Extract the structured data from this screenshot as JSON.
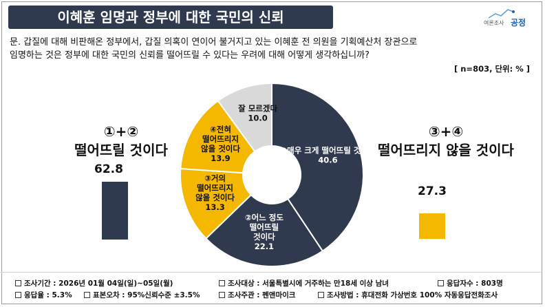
{
  "header": {
    "title": "이혜훈 임명과 정부에 대한 국민의 신뢰",
    "logo_sub": "여론조사",
    "logo_main": "공정"
  },
  "question": {
    "text": "문. 갑질에 대해 비판해온 정부에서, 갑질 의혹이 연이어 불거지고 있는 이혜훈 전 의원을 기획예산처 장관으로\n임명하는 것은 정부에 대한 국민의 신뢰를 떨어뜨릴 수 있다는 우려에 대해 어떻게 생각하십니까?",
    "meta": "[ n=803, 단위: % ]"
  },
  "left_group": {
    "title": "①+②\n떨어뜨릴 것이다",
    "value": "62.8",
    "color": "#2f3a4f"
  },
  "right_group": {
    "title": "③+④\n떨어뜨리지 않을 것이다",
    "value": "27.3",
    "color": "#f5b800"
  },
  "chart_data": {
    "type": "pie",
    "donut": true,
    "start": "top",
    "direction": "clockwise",
    "unit": "%",
    "slices": [
      {
        "label": "①매우 크게 떨어뜨릴 것이다",
        "value": 40.6,
        "value_label": "40.6",
        "color": "#2f3a4f",
        "text_color": "#ffffff"
      },
      {
        "label": "②어느 정도 떨어뜨릴 것이다",
        "value": 22.1,
        "value_label": "22.1",
        "color": "#2f3a4f",
        "text_color": "#ffffff"
      },
      {
        "label": "③거의 떨어뜨리지 않을 것이다",
        "value": 13.3,
        "value_label": "13.3",
        "color": "#f5b800",
        "text_color": "#111111"
      },
      {
        "label": "④전혀 떨어뜨리지 않을 것이다",
        "value": 13.9,
        "value_label": "13.9",
        "color": "#f5b800",
        "text_color": "#111111"
      },
      {
        "label": "잘 모르겠다",
        "value": 10.0,
        "value_label": "10.0",
        "color": "#d9d9d9",
        "text_color": "#111111"
      }
    ],
    "groups": [
      {
        "label": "①+② 떨어뜨릴 것이다",
        "value": 62.8
      },
      {
        "label": "③+④ 떨어뜨리지 않을 것이다",
        "value": 27.3
      }
    ]
  },
  "footer": {
    "items": [
      "조사기간 : 2026년 01월 04일(일)~05일(월)",
      "조사대상 : 서울특별시에 거주하는 만18세 이상 남녀",
      "응답자수 : 803명",
      "응답율 : 5.3%",
      "표본오차 : 95%신뢰수준 ±3.5%",
      "조사주관 : 펜앤마이크",
      "조사방법 : 휴대전화 가상번호 100% 자동응답전화조사"
    ]
  }
}
